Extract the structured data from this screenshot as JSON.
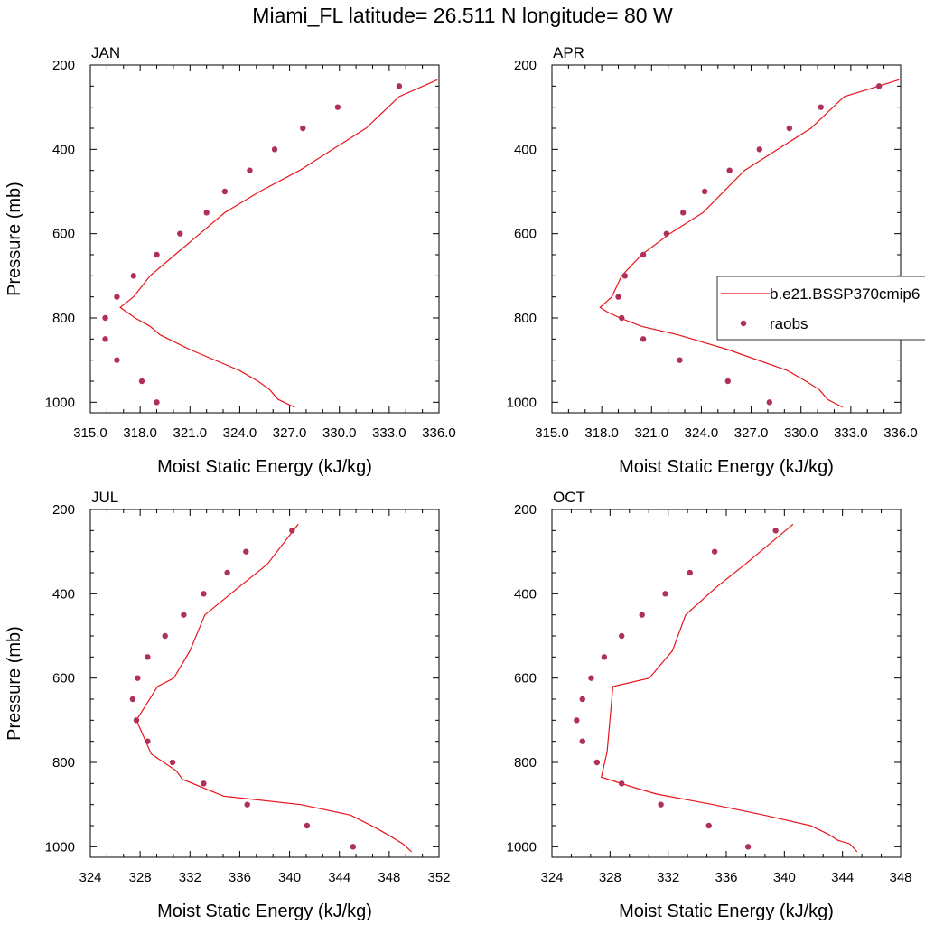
{
  "title": "Miami_FL  latitude= 26.511 N longitude= 80 W",
  "legend": {
    "model_label": "b.e21.BSSP370cmip6",
    "obs_label": "raobs",
    "model_color": "#e8141c",
    "obs_color": "#b0305a"
  },
  "chart_data": [
    {
      "type": "line",
      "panel_label": "JAN",
      "xlabel": "Moist Static Energy (kJ/kg)",
      "ylabel": "Pressure (mb)",
      "xlim": [
        315,
        336
      ],
      "ylim": [
        200,
        1025
      ],
      "y_inverted": true,
      "xticks": [
        "315.0",
        "318.0",
        "321.0",
        "324.0",
        "327.0",
        "330.0",
        "333.0",
        "336.0"
      ],
      "yticks": [
        "200",
        "400",
        "600",
        "800",
        "1000"
      ],
      "series": [
        {
          "name": "b.e21.BSSP370cmip6",
          "kind": "line",
          "x": [
            327.3,
            326.3,
            325.8,
            325.1,
            324.0,
            321.0,
            319.2,
            318.6,
            317.7,
            316.8,
            317.6,
            318.6,
            320.1,
            321.6,
            323.1,
            325.2,
            327.6,
            329.6,
            331.6,
            333.6,
            335.9
          ],
          "y": [
            1012,
            993,
            970,
            950,
            925,
            875,
            840,
            820,
            800,
            775,
            750,
            700,
            650,
            600,
            550,
            500,
            450,
            400,
            350,
            275,
            235
          ]
        },
        {
          "name": "raobs",
          "kind": "points",
          "x": [
            319.0,
            318.1,
            316.6,
            315.9,
            315.9,
            316.6,
            317.6,
            319.0,
            320.4,
            322.0,
            323.1,
            324.6,
            326.1,
            327.8,
            329.9,
            333.6
          ],
          "y": [
            1000,
            950,
            900,
            850,
            800,
            750,
            700,
            650,
            600,
            550,
            500,
            450,
            400,
            350,
            300,
            250
          ]
        }
      ]
    },
    {
      "type": "line",
      "panel_label": "APR",
      "xlabel": "Moist Static Energy (kJ/kg)",
      "ylabel": "",
      "xlim": [
        315,
        336
      ],
      "ylim": [
        200,
        1025
      ],
      "y_inverted": true,
      "xticks": [
        "315.0",
        "318.0",
        "321.0",
        "324.0",
        "327.0",
        "330.0",
        "333.0",
        "336.0"
      ],
      "yticks": [
        "200",
        "400",
        "600",
        "800",
        "1000"
      ],
      "series": [
        {
          "name": "b.e21.BSSP370cmip6",
          "kind": "line",
          "x": [
            332.5,
            331.6,
            331.1,
            330.3,
            329.2,
            325.6,
            322.6,
            320.4,
            319.1,
            318.3,
            317.9,
            318.6,
            319.2,
            320.4,
            322.1,
            324.1,
            326.6,
            328.6,
            330.6,
            332.6,
            335.9
          ],
          "y": [
            1012,
            993,
            970,
            950,
            925,
            875,
            840,
            820,
            800,
            785,
            775,
            750,
            700,
            650,
            600,
            550,
            450,
            400,
            350,
            275,
            235
          ]
        },
        {
          "name": "raobs",
          "kind": "points",
          "x": [
            328.1,
            325.6,
            322.7,
            320.5,
            319.2,
            319.0,
            319.4,
            320.5,
            321.9,
            322.9,
            324.2,
            325.7,
            327.5,
            329.3,
            331.2,
            334.7
          ],
          "y": [
            1000,
            950,
            900,
            850,
            800,
            750,
            700,
            650,
            600,
            550,
            500,
            450,
            400,
            350,
            300,
            250
          ]
        }
      ]
    },
    {
      "type": "line",
      "panel_label": "JUL",
      "xlabel": "Moist Static Energy (kJ/kg)",
      "ylabel": "Pressure (mb)",
      "xlim": [
        324,
        352
      ],
      "ylim": [
        200,
        1025
      ],
      "y_inverted": true,
      "xticks": [
        "324",
        "328",
        "332",
        "336",
        "340",
        "344",
        "348",
        "352"
      ],
      "yticks": [
        "200",
        "400",
        "600",
        "800",
        "1000"
      ],
      "series": [
        {
          "name": "b.e21.BSSP370cmip6",
          "kind": "line",
          "x": [
            349.8,
            349.1,
            348.1,
            346.9,
            344.9,
            340.9,
            334.7,
            331.4,
            330.9,
            328.9,
            327.7,
            329.4,
            330.7,
            332.0,
            333.2,
            335.9,
            338.2,
            340.7
          ],
          "y": [
            1012,
            993,
            975,
            955,
            925,
            900,
            880,
            840,
            820,
            780,
            700,
            620,
            600,
            535,
            450,
            385,
            330,
            235
          ]
        },
        {
          "name": "raobs",
          "kind": "points",
          "x": [
            345.1,
            341.4,
            336.6,
            333.1,
            330.6,
            328.6,
            327.7,
            327.4,
            327.8,
            328.6,
            330.0,
            331.5,
            333.1,
            335.0,
            336.5,
            340.2
          ],
          "y": [
            1000,
            950,
            900,
            850,
            800,
            750,
            700,
            650,
            600,
            550,
            500,
            450,
            400,
            350,
            300,
            250
          ]
        }
      ]
    },
    {
      "type": "line",
      "panel_label": "OCT",
      "xlabel": "Moist Static Energy (kJ/kg)",
      "ylabel": "",
      "xlim": [
        324,
        348
      ],
      "ylim": [
        200,
        1025
      ],
      "y_inverted": true,
      "xticks": [
        "324",
        "328",
        "332",
        "336",
        "340",
        "344",
        "348"
      ],
      "yticks": [
        "200",
        "400",
        "600",
        "800",
        "1000"
      ],
      "series": [
        {
          "name": "b.e21.BSSP370cmip6",
          "kind": "line",
          "x": [
            345.0,
            344.5,
            343.7,
            343.0,
            341.8,
            338.6,
            335.1,
            331.2,
            329.7,
            327.4,
            327.8,
            328.2,
            330.7,
            332.3,
            333.2,
            335.3,
            337.3,
            340.6
          ],
          "y": [
            1012,
            993,
            985,
            970,
            950,
            925,
            900,
            875,
            860,
            835,
            775,
            620,
            600,
            535,
            450,
            385,
            330,
            235
          ]
        },
        {
          "name": "raobs",
          "kind": "points",
          "x": [
            337.5,
            334.8,
            331.5,
            328.8,
            327.1,
            326.1,
            325.7,
            326.1,
            326.7,
            327.6,
            328.8,
            330.2,
            331.8,
            333.5,
            335.2,
            339.4
          ],
          "y": [
            1000,
            950,
            900,
            850,
            800,
            750,
            700,
            650,
            600,
            550,
            500,
            450,
            400,
            350,
            300,
            250
          ]
        }
      ]
    }
  ]
}
